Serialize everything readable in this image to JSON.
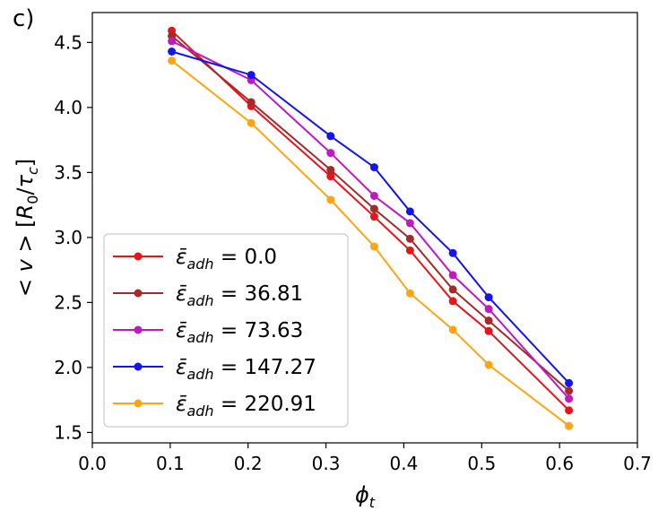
{
  "panel_label": "c)",
  "chart_data": {
    "type": "line",
    "title": "",
    "xlabel": "ϕ_t",
    "ylabel": "< v > [R_0/τ_c]",
    "xlim": [
      0.0,
      0.7
    ],
    "ylim": [
      1.42,
      4.73
    ],
    "xticks": [
      0.0,
      0.1,
      0.2,
      0.3,
      0.4,
      0.5,
      0.6,
      0.7
    ],
    "xtick_labels": [
      "0.0",
      "0.1",
      "0.2",
      "0.3",
      "0.4",
      "0.5",
      "0.6",
      "0.7"
    ],
    "yticks": [
      1.5,
      2.0,
      2.5,
      3.0,
      3.5,
      4.0,
      4.5
    ],
    "ytick_labels": [
      "1.5",
      "2.0",
      "2.5",
      "3.0",
      "3.5",
      "4.0",
      "4.5"
    ],
    "grid": false,
    "legend_position": "lower-left",
    "x": [
      0.102,
      0.204,
      0.306,
      0.362,
      0.408,
      0.463,
      0.509,
      0.612
    ],
    "series": [
      {
        "name": "ε̄_adh = 0.0",
        "legend_symbol": "ε̄",
        "legend_sub": "adh",
        "legend_value": "= 0.0",
        "color": "#e8141b",
        "values": [
          4.59,
          4.01,
          3.47,
          3.16,
          2.9,
          2.51,
          2.28,
          1.67
        ]
      },
      {
        "name": "ε̄_adh = 36.81",
        "legend_symbol": "ε̄",
        "legend_sub": "adh",
        "legend_value": "= 36.81",
        "color": "#a52a2a",
        "values": [
          4.55,
          4.04,
          3.52,
          3.22,
          2.99,
          2.6,
          2.36,
          1.82
        ]
      },
      {
        "name": "ε̄_adh = 73.63",
        "legend_symbol": "ε̄",
        "legend_sub": "adh",
        "legend_value": "= 73.63",
        "color": "#bf19bf",
        "values": [
          4.51,
          4.21,
          3.65,
          3.32,
          3.11,
          2.71,
          2.45,
          1.76
        ]
      },
      {
        "name": "ε̄_adh = 147.27",
        "legend_symbol": "ε̄",
        "legend_sub": "adh",
        "legend_value": "= 147.27",
        "color": "#1414f0",
        "values": [
          4.43,
          4.25,
          3.78,
          3.54,
          3.2,
          2.88,
          2.54,
          1.88
        ]
      },
      {
        "name": "ε̄_adh = 220.91",
        "legend_symbol": "ε̄",
        "legend_sub": "adh",
        "legend_value": "= 220.91",
        "color": "#ffa514",
        "values": [
          4.36,
          3.88,
          3.29,
          2.93,
          2.57,
          2.29,
          2.02,
          1.55
        ]
      }
    ]
  }
}
